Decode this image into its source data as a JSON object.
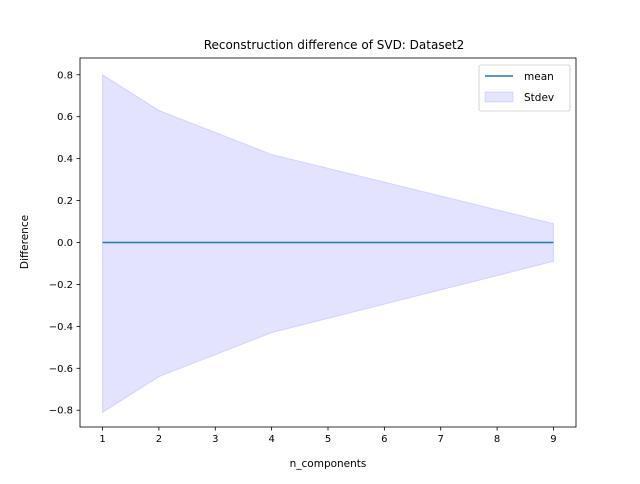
{
  "chart_data": {
    "type": "area",
    "title": "Reconstruction difference of SVD: Dataset2",
    "xlabel": "n_components",
    "ylabel": "Difference",
    "xlim": [
      0.6,
      9.4
    ],
    "ylim": [
      -0.88,
      0.88
    ],
    "xticks": [
      1,
      2,
      3,
      4,
      5,
      6,
      7,
      8,
      9
    ],
    "yticks": [
      -0.8,
      -0.6,
      -0.4,
      -0.2,
      0.0,
      0.2,
      0.4,
      0.6,
      0.8
    ],
    "xtick_labels": [
      "1",
      "2",
      "3",
      "4",
      "5",
      "6",
      "7",
      "8",
      "9"
    ],
    "ytick_labels": [
      "−0.8",
      "−0.6",
      "−0.4",
      "−0.2",
      "0.0",
      "0.2",
      "0.4",
      "0.6",
      "0.8"
    ],
    "grid": false,
    "legend_position": "top-right",
    "x": [
      1,
      2,
      4,
      9
    ],
    "series": [
      {
        "name": "mean",
        "kind": "line",
        "color": "#1f77b4",
        "values": [
          0.0,
          0.0,
          0.0,
          0.0
        ]
      },
      {
        "name": "Stdev",
        "kind": "band",
        "color": "#0000ff",
        "lower": [
          -0.81,
          -0.64,
          -0.43,
          -0.09
        ],
        "upper": [
          0.8,
          0.63,
          0.42,
          0.09
        ]
      }
    ]
  }
}
